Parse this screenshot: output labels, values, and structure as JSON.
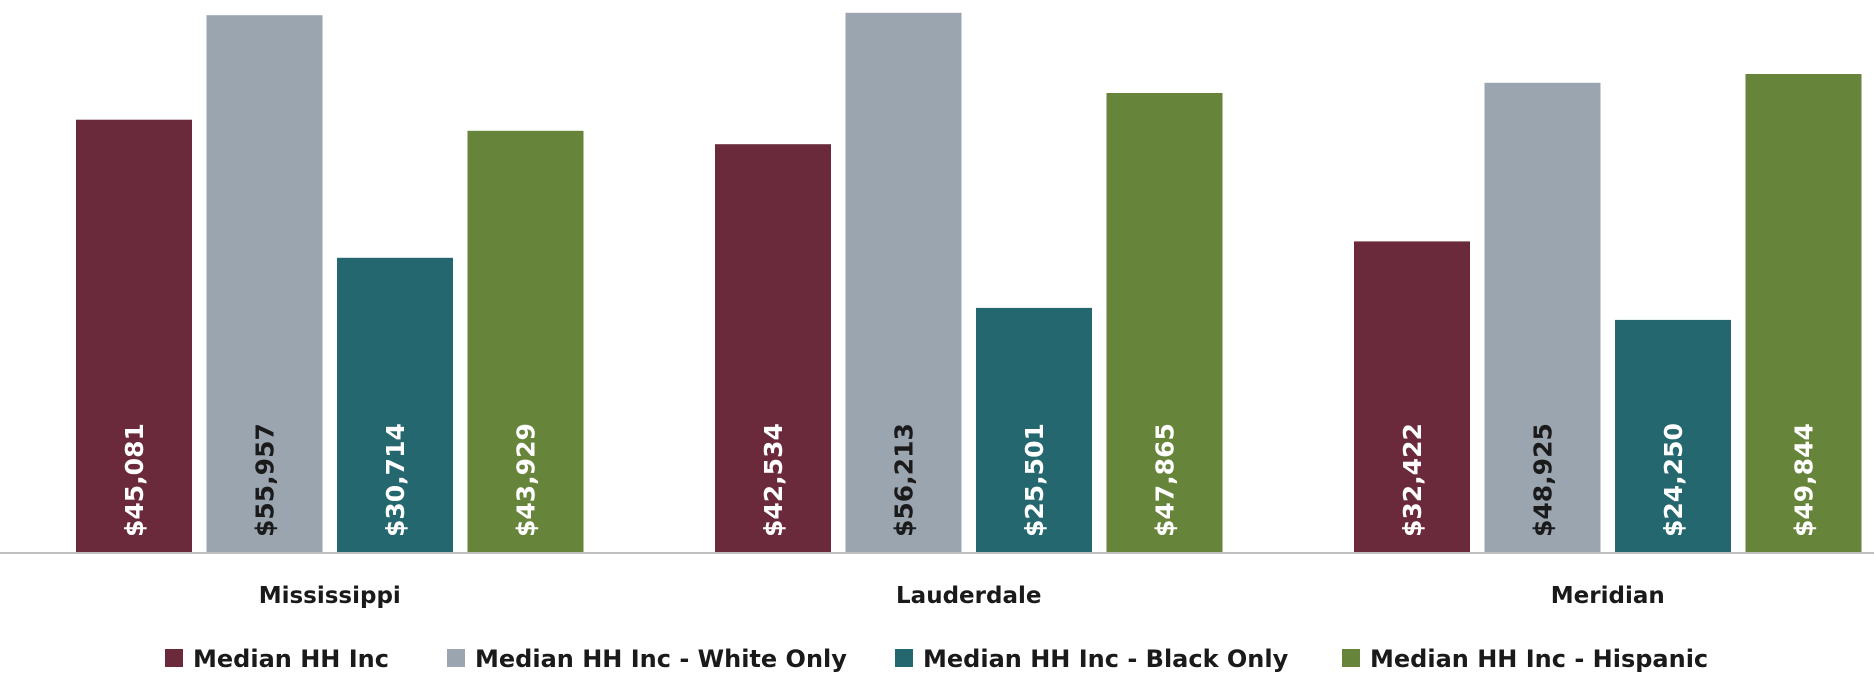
{
  "chart_data": {
    "type": "bar",
    "title": "",
    "xlabel": "",
    "ylabel": "",
    "ylim": [
      0,
      56500
    ],
    "grid": false,
    "legend_position": "bottom",
    "categories": [
      "Mississippi",
      "Lauderdale",
      "Meridian"
    ],
    "series": [
      {
        "name": "Median HH Inc",
        "color": "#6b2a3b",
        "label_color": "#ffffff",
        "values": [
          45081,
          42534,
          32422
        ],
        "labels": [
          "$45,081",
          "$42,534",
          "$32,422"
        ]
      },
      {
        "name": "Median HH Inc - White Only",
        "color": "#9ba5b0",
        "label_color": "#1a1a1a",
        "values": [
          55957,
          56213,
          48925
        ],
        "labels": [
          "$55,957",
          "$56,213",
          "$48,925"
        ]
      },
      {
        "name": "Median HH Inc - Black Only",
        "color": "#24676e",
        "label_color": "#ffffff",
        "values": [
          30714,
          25501,
          24250
        ],
        "labels": [
          "$30,714",
          "$25,501",
          "$24,250"
        ]
      },
      {
        "name": "Median HH Inc - Hispanic",
        "color": "#67843b",
        "label_color": "#ffffff",
        "values": [
          43929,
          47865,
          49844
        ],
        "labels": [
          "$43,929",
          "$47,865",
          "$49,844"
        ]
      }
    ]
  }
}
